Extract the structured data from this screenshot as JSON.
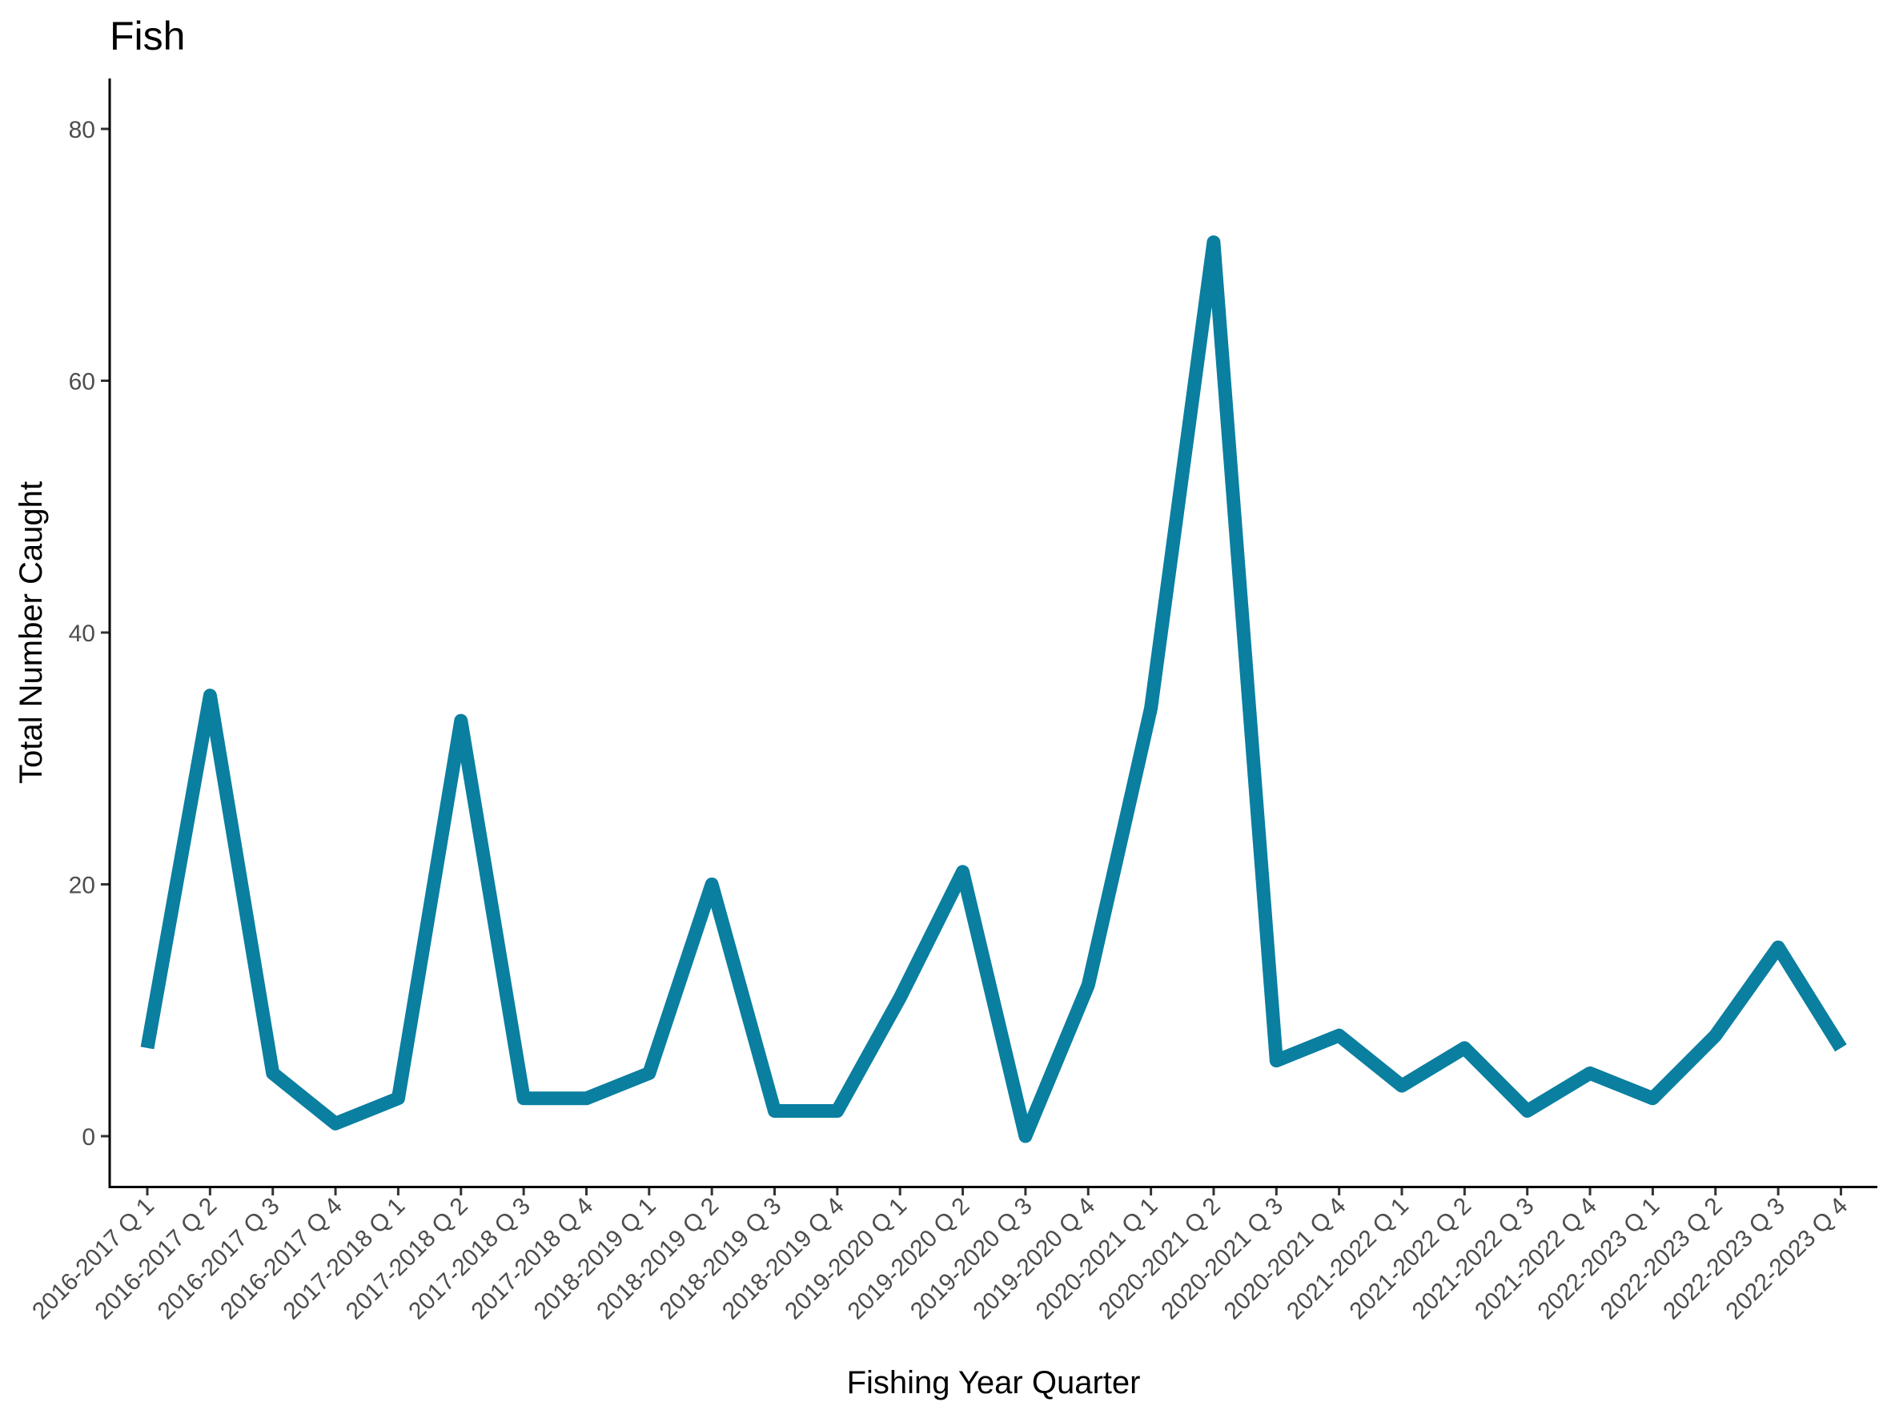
{
  "chart_data": {
    "type": "line",
    "title": "Fish",
    "xlabel": "Fishing Year Quarter",
    "ylabel": "Total Number Caught",
    "ylim": [
      -4,
      84
    ],
    "yticks": [
      0,
      20,
      40,
      60,
      80
    ],
    "grid": false,
    "legend": "none",
    "line_color": "#0A7FA0",
    "categories": [
      "2016-2017 Q 1",
      "2016-2017 Q 2",
      "2016-2017 Q 3",
      "2016-2017 Q 4",
      "2017-2018 Q 1",
      "2017-2018 Q 2",
      "2017-2018 Q 3",
      "2017-2018 Q 4",
      "2018-2019 Q 1",
      "2018-2019 Q 2",
      "2018-2019 Q 3",
      "2018-2019 Q 4",
      "2019-2020 Q 1",
      "2019-2020 Q 2",
      "2019-2020 Q 3",
      "2019-2020 Q 4",
      "2020-2021 Q 1",
      "2020-2021 Q 2",
      "2020-2021 Q 3",
      "2020-2021 Q 4",
      "2021-2022 Q 1",
      "2021-2022 Q 2",
      "2021-2022 Q 3",
      "2021-2022 Q 4",
      "2022-2023 Q 1",
      "2022-2023 Q 2",
      "2022-2023 Q 3",
      "2022-2023 Q 4"
    ],
    "values": [
      7,
      35,
      5,
      1,
      3,
      33,
      3,
      3,
      5,
      20,
      2,
      2,
      11,
      21,
      0,
      12,
      34,
      71,
      6,
      8,
      4,
      7,
      2,
      5,
      3,
      8,
      15,
      7
    ]
  }
}
